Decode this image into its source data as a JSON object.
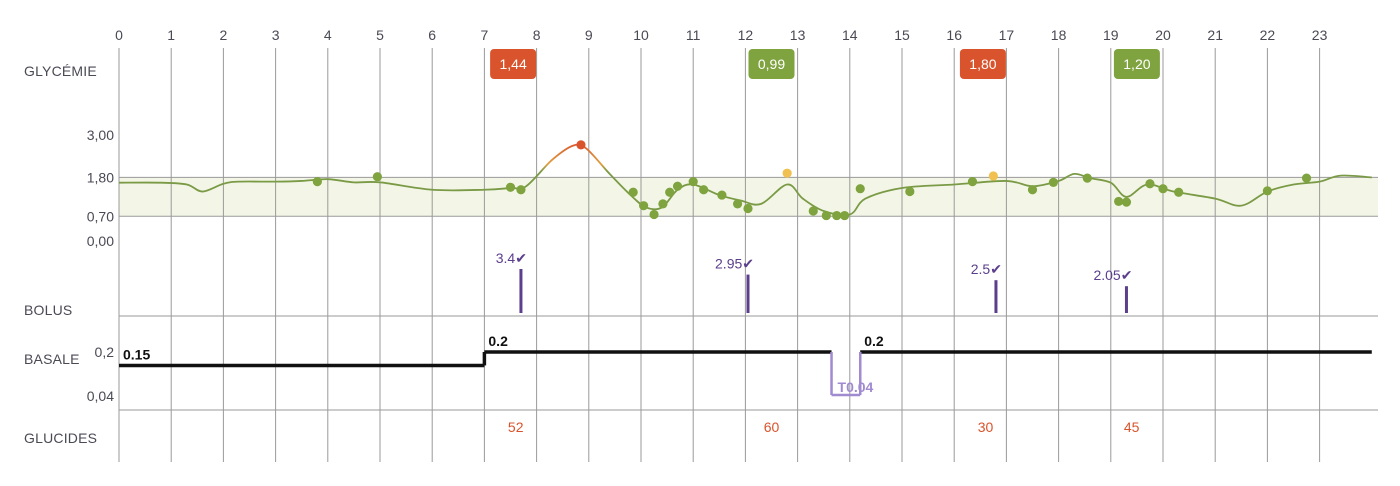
{
  "rows": {
    "glycemie": "GLYCÉMIE",
    "bolus": "BOLUS",
    "basale": "BASALE",
    "glucides": "GLUCIDES"
  },
  "colors": {
    "grid": "#9a9a9a",
    "curve_green": "#7a9a46",
    "curve_orange": "#e0a040",
    "curve_red": "#d9542c",
    "dot_green": "#7ea33f",
    "dot_yellow": "#f0c050",
    "badge_red": "#d9542c",
    "badge_green": "#7ea33f",
    "target_band": "#f3f6e6",
    "bolus": "#5b3e8c",
    "basal": "#111111",
    "temp_basal": "#a08ad0",
    "carbs": "#d9542c",
    "axis_text": "#4a4a55"
  },
  "chart_data": {
    "type": "line",
    "x_ticks": [
      "0",
      "1",
      "2",
      "3",
      "4",
      "5",
      "6",
      "7",
      "8",
      "9",
      "10",
      "11",
      "12",
      "13",
      "14",
      "15",
      "16",
      "17",
      "18",
      "19",
      "20",
      "21",
      "22",
      "23"
    ],
    "xlim": [
      0,
      24
    ],
    "glycemia": {
      "y_ticks": [
        "3,00",
        "1,80",
        "0,70",
        "0,00"
      ],
      "target_range": [
        0.7,
        1.8
      ],
      "ylim": [
        0,
        3.0
      ],
      "curve": [
        [
          0,
          1.65
        ],
        [
          0.8,
          1.65
        ],
        [
          1.3,
          1.6
        ],
        [
          1.6,
          1.4
        ],
        [
          2.0,
          1.62
        ],
        [
          2.3,
          1.68
        ],
        [
          3.0,
          1.68
        ],
        [
          3.5,
          1.7
        ],
        [
          4.0,
          1.75
        ],
        [
          4.5,
          1.66
        ],
        [
          5.0,
          1.66
        ],
        [
          6.0,
          1.45
        ],
        [
          7.0,
          1.45
        ],
        [
          7.5,
          1.5
        ],
        [
          7.8,
          1.55
        ],
        [
          8.3,
          2.3
        ],
        [
          8.7,
          2.7
        ],
        [
          8.95,
          2.62
        ],
        [
          9.4,
          1.9
        ],
        [
          9.8,
          1.3
        ],
        [
          10.1,
          0.95
        ],
        [
          10.4,
          0.95
        ],
        [
          10.7,
          1.45
        ],
        [
          11.0,
          1.6
        ],
        [
          11.5,
          1.3
        ],
        [
          11.9,
          1.15
        ],
        [
          12.3,
          1.05
        ],
        [
          12.8,
          1.6
        ],
        [
          13.1,
          1.2
        ],
        [
          13.5,
          0.85
        ],
        [
          14.0,
          0.75
        ],
        [
          14.3,
          1.2
        ],
        [
          15.0,
          1.5
        ],
        [
          16.0,
          1.6
        ],
        [
          17.0,
          1.7
        ],
        [
          17.5,
          1.55
        ],
        [
          18.0,
          1.7
        ],
        [
          18.3,
          1.9
        ],
        [
          18.6,
          1.78
        ],
        [
          19.0,
          1.65
        ],
        [
          19.3,
          1.25
        ],
        [
          19.7,
          1.6
        ],
        [
          20.2,
          1.4
        ],
        [
          21.0,
          1.2
        ],
        [
          21.5,
          1.0
        ],
        [
          22.0,
          1.4
        ],
        [
          22.5,
          1.6
        ],
        [
          23.0,
          1.68
        ],
        [
          23.4,
          1.85
        ],
        [
          24.0,
          1.8
        ]
      ],
      "readings": [
        {
          "x": 3.8,
          "y": 1.68,
          "level": "normal"
        },
        {
          "x": 4.95,
          "y": 1.82,
          "level": "normal"
        },
        {
          "x": 7.5,
          "y": 1.52,
          "level": "normal"
        },
        {
          "x": 7.7,
          "y": 1.45,
          "level": "normal"
        },
        {
          "x": 8.85,
          "y": 2.72,
          "level": "high"
        },
        {
          "x": 9.85,
          "y": 1.38,
          "level": "normal"
        },
        {
          "x": 10.05,
          "y": 1.0,
          "level": "normal"
        },
        {
          "x": 10.25,
          "y": 0.75,
          "level": "normal"
        },
        {
          "x": 10.42,
          "y": 1.05,
          "level": "normal"
        },
        {
          "x": 10.55,
          "y": 1.38,
          "level": "normal"
        },
        {
          "x": 10.7,
          "y": 1.55,
          "level": "normal"
        },
        {
          "x": 11.0,
          "y": 1.68,
          "level": "normal"
        },
        {
          "x": 11.2,
          "y": 1.45,
          "level": "normal"
        },
        {
          "x": 11.55,
          "y": 1.3,
          "level": "normal"
        },
        {
          "x": 11.85,
          "y": 1.05,
          "level": "normal"
        },
        {
          "x": 12.05,
          "y": 0.92,
          "level": "normal"
        },
        {
          "x": 12.8,
          "y": 1.92,
          "level": "elevated"
        },
        {
          "x": 13.3,
          "y": 0.85,
          "level": "normal"
        },
        {
          "x": 13.55,
          "y": 0.72,
          "level": "normal"
        },
        {
          "x": 13.75,
          "y": 0.72,
          "level": "normal"
        },
        {
          "x": 13.9,
          "y": 0.72,
          "level": "normal"
        },
        {
          "x": 14.2,
          "y": 1.48,
          "level": "normal"
        },
        {
          "x": 15.15,
          "y": 1.4,
          "level": "normal"
        },
        {
          "x": 16.35,
          "y": 1.68,
          "level": "normal"
        },
        {
          "x": 16.75,
          "y": 1.84,
          "level": "elevated"
        },
        {
          "x": 17.5,
          "y": 1.45,
          "level": "normal"
        },
        {
          "x": 17.9,
          "y": 1.66,
          "level": "normal"
        },
        {
          "x": 18.55,
          "y": 1.78,
          "level": "normal"
        },
        {
          "x": 19.15,
          "y": 1.12,
          "level": "normal"
        },
        {
          "x": 19.3,
          "y": 1.1,
          "level": "normal"
        },
        {
          "x": 19.75,
          "y": 1.62,
          "level": "normal"
        },
        {
          "x": 20.0,
          "y": 1.48,
          "level": "normal"
        },
        {
          "x": 20.3,
          "y": 1.38,
          "level": "normal"
        },
        {
          "x": 22.0,
          "y": 1.42,
          "level": "normal"
        },
        {
          "x": 22.75,
          "y": 1.78,
          "level": "normal"
        }
      ],
      "badges": [
        {
          "x": 7.55,
          "label": "1,44",
          "level": "high"
        },
        {
          "x": 12.5,
          "label": "0,99",
          "level": "normal"
        },
        {
          "x": 16.55,
          "label": "1,80",
          "level": "high"
        },
        {
          "x": 19.5,
          "label": "1,20",
          "level": "normal"
        }
      ]
    },
    "bolus": [
      {
        "x": 7.7,
        "value": "3.4",
        "height": 1.0
      },
      {
        "x": 12.05,
        "value": "2.95",
        "height": 0.87
      },
      {
        "x": 16.8,
        "value": "2.5",
        "height": 0.74
      },
      {
        "x": 19.3,
        "value": "2.05",
        "height": 0.6
      }
    ],
    "basal": {
      "y_ticks": [
        "0,2",
        "0,04"
      ],
      "segments": [
        {
          "from": 0,
          "to": 7,
          "rate": 0.15,
          "label": "0.15"
        },
        {
          "from": 7,
          "to": 13.65,
          "rate": 0.2,
          "label": "0.2"
        },
        {
          "from": 13.65,
          "to": 14.2,
          "rate": 0.04,
          "label": "T0.04",
          "temporary": true
        },
        {
          "from": 14.2,
          "to": 24,
          "rate": 0.2,
          "label": "0.2"
        }
      ]
    },
    "carbs": [
      {
        "x": 7.6,
        "value": "52"
      },
      {
        "x": 12.5,
        "value": "60"
      },
      {
        "x": 16.6,
        "value": "30"
      },
      {
        "x": 19.4,
        "value": "45"
      }
    ]
  }
}
